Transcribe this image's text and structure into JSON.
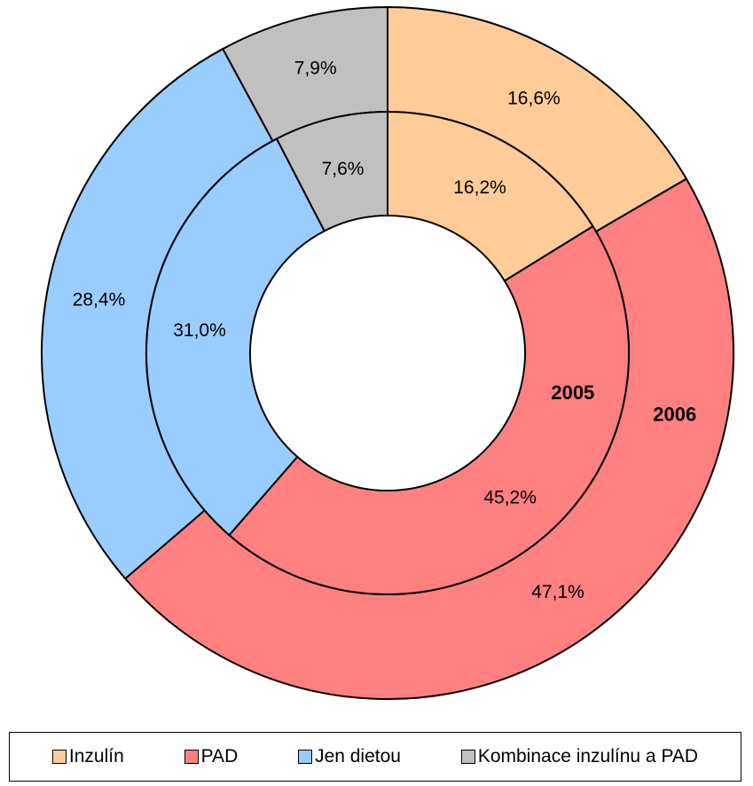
{
  "chart_data": {
    "type": "pie",
    "subtype": "doughnut",
    "categories": [
      "Inzulín",
      "PAD",
      "Jen dietou",
      "Kombinace inzulínu a PAD"
    ],
    "colors": [
      "#FFCC99",
      "#FF8080",
      "#99CCFF",
      "#C0C0C0"
    ],
    "series": [
      {
        "name": "2005",
        "ring": "inner",
        "values": [
          16.2,
          45.2,
          31.0,
          7.6
        ],
        "labels": [
          "16,2%",
          "45,2%",
          "31,0%",
          "7,6%"
        ]
      },
      {
        "name": "2006",
        "ring": "outer",
        "values": [
          16.6,
          47.1,
          28.4,
          7.9
        ],
        "labels": [
          "16,6%",
          "47,1%",
          "28,4%",
          "7,9%"
        ]
      }
    ],
    "legend_position": "bottom",
    "legend": [
      "Inzulín",
      "PAD",
      "Jen dietou",
      "Kombinace inzulínu a PAD"
    ]
  }
}
